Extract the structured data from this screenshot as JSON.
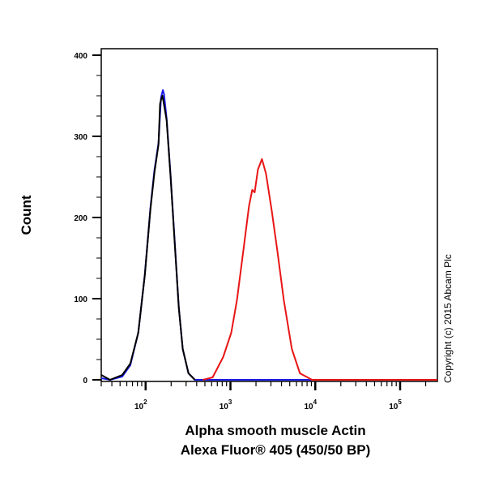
{
  "chart_data": {
    "type": "line",
    "title": "",
    "xlabel_lines": [
      "Alpha smooth muscle Actin",
      "Alexa Fluor® 405 (450/50 BP)"
    ],
    "ylabel": "Count",
    "x_scale": "log",
    "xlim": [
      30,
      275000
    ],
    "ylim": [
      0,
      410
    ],
    "y_ticks": [
      0,
      100,
      200,
      300,
      400
    ],
    "x_ticks": [
      {
        "value": 100,
        "base": "10",
        "exp": "2"
      },
      {
        "value": 1000,
        "base": "10",
        "exp": "3"
      },
      {
        "value": 10000,
        "base": "10",
        "exp": "4"
      },
      {
        "value": 100000,
        "base": "10",
        "exp": "5"
      }
    ],
    "grid": false,
    "legend": "none",
    "series": [
      {
        "color": "#1a1ae6",
        "x": [
          30,
          38,
          53,
          66,
          82,
          98,
          114,
          127,
          142,
          152,
          160,
          165,
          177,
          197,
          220,
          246,
          274,
          320,
          381,
          275000
        ],
        "y": [
          2,
          0,
          4,
          18,
          58,
          130,
          212,
          258,
          292,
          348,
          357,
          352,
          322,
          252,
          172,
          90,
          38,
          8,
          0,
          0
        ]
      },
      {
        "color": "#000000",
        "x": [
          30,
          38,
          53,
          66,
          82,
          98,
          114,
          127,
          142,
          148,
          152,
          158,
          177,
          197,
          220,
          246,
          274,
          320,
          381
        ],
        "y": [
          6,
          0,
          6,
          20,
          58,
          129,
          210,
          255,
          290,
          340,
          345,
          350,
          320,
          250,
          170,
          89,
          38,
          8,
          0
        ]
      },
      {
        "color": "#e81515",
        "x": [
          474,
          617,
          820,
          1023,
          1192,
          1419,
          1655,
          1807,
          1930,
          2108,
          2351,
          2622,
          3062,
          3568,
          4254,
          5296,
          6594,
          9160,
          275000
        ],
        "y": [
          0,
          3,
          28,
          58,
          98,
          159,
          214,
          234,
          231,
          259,
          272,
          254,
          209,
          159,
          98,
          38,
          8,
          0,
          0
        ]
      }
    ]
  },
  "copyright": "Copyright (c) 2015 Abcam Plc",
  "colors": {
    "axis": "#000000",
    "background": "#ffffff"
  }
}
